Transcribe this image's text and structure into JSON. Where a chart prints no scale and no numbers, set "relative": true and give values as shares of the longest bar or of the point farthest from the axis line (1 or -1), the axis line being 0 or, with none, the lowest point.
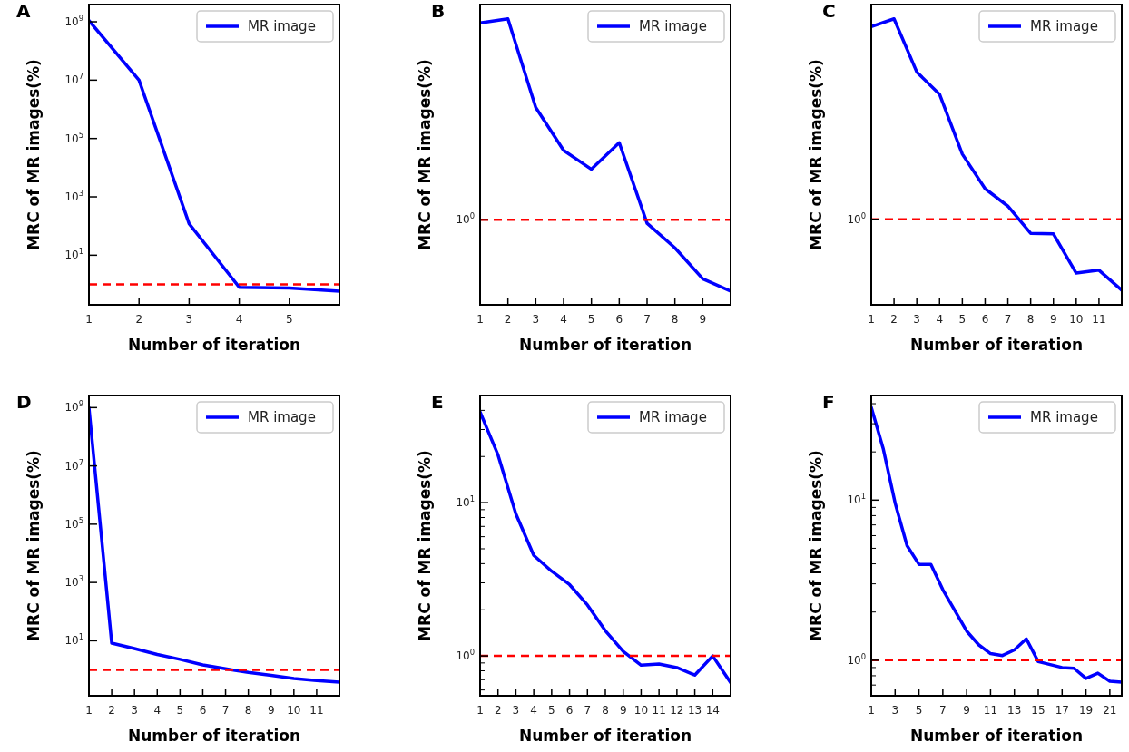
{
  "chart_data": [
    {
      "type": "line",
      "title": "A",
      "xlabel": "Number of iteration",
      "ylabel": "MRC of MR images(%)",
      "log": "y",
      "legend": "top right",
      "x": [
        1,
        2,
        3,
        4,
        5,
        6
      ],
      "xlim": [
        1,
        6
      ],
      "xticks": [
        1,
        2,
        3,
        4,
        5
      ],
      "ylim": [
        0.2,
        3900000000
      ],
      "yticks": [
        {
          "value": 10,
          "label": "10$^{1}$"
        },
        {
          "value": 1000,
          "label": "10$^{3}$"
        },
        {
          "value": 100000,
          "label": "10$^{5}$"
        },
        {
          "value": 10000000,
          "label": "10$^{7}$"
        },
        {
          "value": 1000000000,
          "label": "10$^{9}$"
        }
      ],
      "series": [
        {
          "name": "MR image",
          "color": "#0000ff",
          "values": [
            1100000000,
            10000000,
            120,
            0.8,
            0.75,
            0.59
          ]
        }
      ],
      "ref_lines": [
        {
          "axis": "y",
          "value": 1,
          "color": "#ff0000",
          "line_style": "dashed"
        }
      ]
    },
    {
      "type": "line",
      "title": "B",
      "xlabel": "Number of iteration",
      "ylabel": "MRC of MR images(%)",
      "relative": true,
      "legend": "top right",
      "x": [
        1,
        2,
        3,
        4,
        5,
        6,
        7,
        8,
        9,
        10
      ],
      "xlim": [
        1,
        10
      ],
      "xticks": [
        1,
        2,
        3,
        4,
        5,
        6,
        7,
        8,
        9
      ],
      "annotations": [
        {
          "text": "10$^{0}$",
          "x": 1,
          "y": 0.297
        }
      ],
      "series": [
        {
          "name": "MR image",
          "color": "#0000ff",
          "values": [
            0.986,
            1,
            0.69,
            0.54,
            0.474,
            0.567,
            0.285,
            0.199,
            0.091,
            0.048
          ]
        }
      ],
      "ref_lines": [
        {
          "axis": "y",
          "value": 0.297,
          "color": "#ff0000",
          "line_style": "dashed"
        }
      ]
    },
    {
      "type": "line",
      "title": "C",
      "xlabel": "Number of iteration",
      "ylabel": "MRC of MR images(%)",
      "relative": true,
      "legend": "top right",
      "x": [
        1,
        2,
        3,
        4,
        5,
        6,
        7,
        8,
        9,
        10,
        11,
        12
      ],
      "xlim": [
        1,
        12
      ],
      "xticks": [
        1,
        2,
        3,
        4,
        5,
        6,
        7,
        8,
        9,
        10,
        11
      ],
      "annotations": [
        {
          "text": "10$^{0}$",
          "x": 1,
          "y": 0.299
        }
      ],
      "series": [
        {
          "name": "MR image",
          "color": "#0000ff",
          "values": [
            0.973,
            1,
            0.814,
            0.736,
            0.527,
            0.406,
            0.345,
            0.25,
            0.248,
            0.111,
            0.121,
            0.051
          ]
        }
      ],
      "ref_lines": [
        {
          "axis": "y",
          "value": 0.299,
          "color": "#ff0000",
          "line_style": "dashed"
        }
      ]
    },
    {
      "type": "line",
      "title": "D",
      "xlabel": "Number of iteration",
      "ylabel": "MRC of MR images(%)",
      "log": "y",
      "legend": "top right",
      "x": [
        1,
        2,
        3,
        4,
        5,
        6,
        7,
        8,
        9,
        10,
        11,
        12
      ],
      "xlim": [
        1,
        12
      ],
      "xticks": [
        1,
        2,
        3,
        4,
        5,
        6,
        7,
        8,
        9,
        10,
        11
      ],
      "ylim": [
        0.13,
        2600000000
      ],
      "yticks": [
        {
          "value": 10,
          "label": "10$^{1}$"
        },
        {
          "value": 1000,
          "label": "10$^{3}$"
        },
        {
          "value": 100000,
          "label": "10$^{5}$"
        },
        {
          "value": 10000000,
          "label": "10$^{7}$"
        },
        {
          "value": 1000000000,
          "label": "10$^{9}$"
        }
      ],
      "series": [
        {
          "name": "MR image",
          "color": "#0000ff",
          "values": [
            1000000000,
            8.3,
            5.4,
            3.4,
            2.3,
            1.48,
            1.09,
            0.82,
            0.65,
            0.51,
            0.43,
            0.38
          ]
        }
      ],
      "ref_lines": [
        {
          "axis": "y",
          "value": 1,
          "color": "#ff0000",
          "line_style": "dashed"
        }
      ]
    },
    {
      "type": "line",
      "title": "E",
      "xlabel": "Number of iteration",
      "ylabel": "MRC of MR images(%)",
      "log": "y",
      "legend": "top right",
      "x": [
        1,
        2,
        3,
        4,
        5,
        6,
        7,
        8,
        9,
        10,
        11,
        12,
        13,
        14,
        15
      ],
      "xlim": [
        1,
        15
      ],
      "xticks": [
        1,
        2,
        3,
        4,
        5,
        6,
        7,
        8,
        9,
        10,
        11,
        12,
        13,
        14
      ],
      "ylim": [
        0.55,
        50
      ],
      "yticks": [
        {
          "value": 0.6,
          "label": null
        },
        {
          "value": 0.7,
          "label": null
        },
        {
          "value": 0.8,
          "label": null
        },
        {
          "value": 0.9,
          "label": null
        },
        {
          "value": 1,
          "label": "10$^{0}$"
        },
        {
          "value": 2,
          "label": null
        },
        {
          "value": 3,
          "label": null
        },
        {
          "value": 4,
          "label": null
        },
        {
          "value": 5,
          "label": null
        },
        {
          "value": 6,
          "label": null
        },
        {
          "value": 7,
          "label": null
        },
        {
          "value": 8,
          "label": null
        },
        {
          "value": 9,
          "label": null
        },
        {
          "value": 10,
          "label": "10$^{1}$"
        },
        {
          "value": 20,
          "label": null
        },
        {
          "value": 30,
          "label": null
        },
        {
          "value": 40,
          "label": null
        }
      ],
      "series": [
        {
          "name": "MR image",
          "color": "#0000ff",
          "values": [
            39,
            20.5,
            8.45,
            4.53,
            3.57,
            2.92,
            2.15,
            1.46,
            1.07,
            0.87,
            0.885,
            0.84,
            0.75,
            1.0,
            0.67
          ]
        }
      ],
      "ref_lines": [
        {
          "axis": "y",
          "value": 1,
          "color": "#ff0000",
          "line_style": "dashed"
        }
      ]
    },
    {
      "type": "line",
      "title": "F",
      "xlabel": "Number of iteration",
      "ylabel": "MRC of MR images(%)",
      "log": "y",
      "legend": "top right",
      "x": [
        1,
        2,
        3,
        4,
        5,
        6,
        7,
        8,
        9,
        10,
        11,
        12,
        13,
        14,
        15,
        16,
        17,
        18,
        19,
        20,
        21,
        22
      ],
      "xlim": [
        1,
        22
      ],
      "xticks": [
        1,
        3,
        5,
        7,
        9,
        11,
        13,
        15,
        17,
        19,
        21
      ],
      "ylim": [
        0.6,
        45
      ],
      "yticks": [
        {
          "value": 0.7,
          "label": null
        },
        {
          "value": 0.8,
          "label": null
        },
        {
          "value": 0.9,
          "label": null
        },
        {
          "value": 1,
          "label": "10$^{0}$"
        },
        {
          "value": 2,
          "label": null
        },
        {
          "value": 3,
          "label": null
        },
        {
          "value": 4,
          "label": null
        },
        {
          "value": 5,
          "label": null
        },
        {
          "value": 6,
          "label": null
        },
        {
          "value": 7,
          "label": null
        },
        {
          "value": 8,
          "label": null
        },
        {
          "value": 9,
          "label": null
        },
        {
          "value": 10,
          "label": "10$^{1}$"
        },
        {
          "value": 20,
          "label": null
        },
        {
          "value": 30,
          "label": null
        },
        {
          "value": 40,
          "label": null
        }
      ],
      "series": [
        {
          "name": "MR image",
          "color": "#0000ff",
          "values": [
            38,
            21,
            9.6,
            5.2,
            3.97,
            3.97,
            2.76,
            2.05,
            1.52,
            1.25,
            1.1,
            1.07,
            1.16,
            1.36,
            0.98,
            0.94,
            0.9,
            0.89,
            0.77,
            0.83,
            0.74,
            0.73
          ]
        }
      ],
      "ref_lines": [
        {
          "axis": "y",
          "value": 1,
          "color": "#ff0000",
          "line_style": "dashed"
        }
      ]
    }
  ]
}
